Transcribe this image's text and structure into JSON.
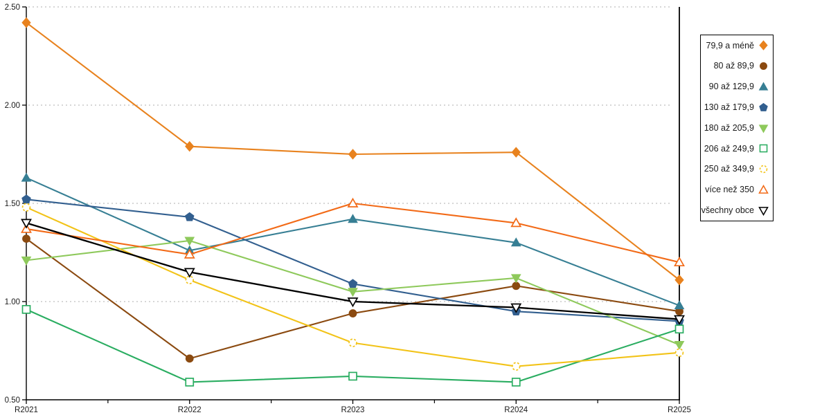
{
  "chart_data": {
    "type": "line",
    "title": "",
    "xlabel": "",
    "ylabel": "",
    "categories": [
      "R2021",
      "R2022",
      "R2023",
      "R2024",
      "R2025"
    ],
    "y_ticks": [
      {
        "label": "2.50",
        "value": 2.5
      },
      {
        "label": "2.00",
        "value": 2.0
      },
      {
        "label": "1.50",
        "value": 1.5
      },
      {
        "label": "1.00",
        "value": 1.0
      },
      {
        "label": "0.50",
        "value": 0.5
      }
    ],
    "ylim": [
      0.5,
      2.5
    ],
    "grid": "horizontal-dotted",
    "legend_position": "right",
    "series": [
      {
        "name": "79,9 a méně",
        "marker": "diamond",
        "fill": "filled",
        "color": "#E8821E",
        "values": [
          2.42,
          1.79,
          1.75,
          1.76,
          1.11
        ]
      },
      {
        "name": "80 až 89,9",
        "marker": "circle",
        "fill": "filled",
        "color": "#8B4A10",
        "values": [
          1.32,
          0.71,
          0.94,
          1.08,
          0.95
        ]
      },
      {
        "name": "90 až 129,9",
        "marker": "triangle-up",
        "fill": "filled",
        "color": "#377F94",
        "values": [
          1.63,
          1.26,
          1.42,
          1.3,
          0.98
        ]
      },
      {
        "name": "130 až 179,9",
        "marker": "pentagon",
        "fill": "filled",
        "color": "#325F8F",
        "values": [
          1.52,
          1.43,
          1.09,
          0.95,
          0.9
        ]
      },
      {
        "name": "180 až 205,9",
        "marker": "triangle-down",
        "fill": "filled",
        "color": "#8EC95B",
        "values": [
          1.21,
          1.31,
          1.05,
          1.12,
          0.78
        ]
      },
      {
        "name": "206 až 249,9",
        "marker": "square",
        "fill": "open",
        "color": "#2AAD61",
        "values": [
          0.96,
          0.59,
          0.62,
          0.59,
          0.86
        ]
      },
      {
        "name": "250 až 349,9",
        "marker": "circle-dashed",
        "fill": "open",
        "color": "#F2C318",
        "values": [
          1.48,
          1.11,
          0.79,
          0.67,
          0.74
        ]
      },
      {
        "name": "více než 350",
        "marker": "triangle-up",
        "fill": "open",
        "color": "#F26A17",
        "values": [
          1.37,
          1.24,
          1.5,
          1.4,
          1.2
        ]
      },
      {
        "name": "všechny obce",
        "marker": "triangle-down",
        "fill": "open",
        "color": "#000000",
        "values": [
          1.4,
          1.15,
          1.0,
          0.97,
          0.91
        ]
      }
    ]
  },
  "colors": {
    "axis": "#000000",
    "gridline": "#bdbdbd",
    "tick_text": "#1a1a1a",
    "background": "#ffffff"
  }
}
